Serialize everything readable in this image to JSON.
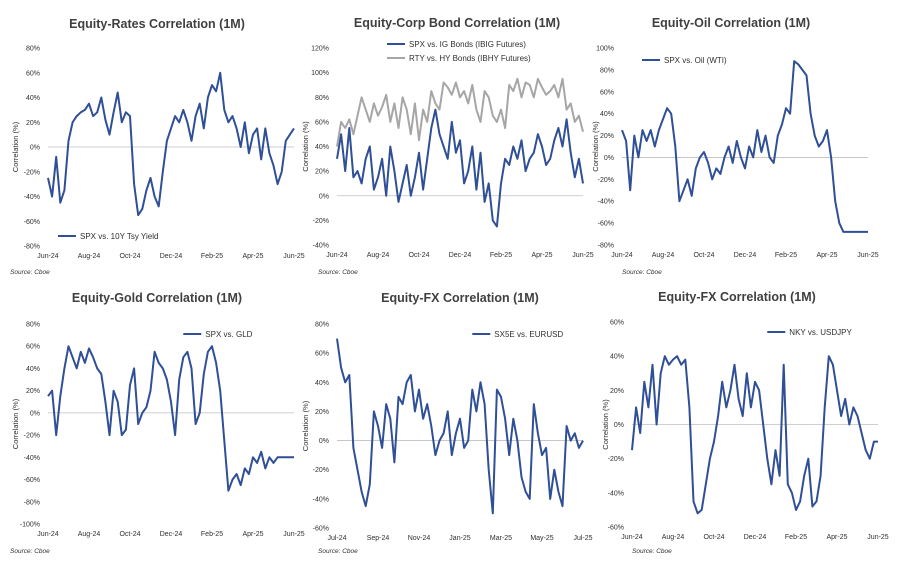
{
  "page": {
    "source_note": "Source: Cboe"
  },
  "colors": {
    "primary": "#2f4f96",
    "secondary": "#a6a6a6",
    "zero_line": "#bfbfbf"
  },
  "chart_data": [
    {
      "id": "equity-rates",
      "type": "line",
      "title": "Equity-Rates Correlation (1M)",
      "ylabel": "Correlation (%)",
      "ylim": [
        -80,
        80
      ],
      "yticks": [
        -80,
        -60,
        -40,
        -20,
        0,
        20,
        40,
        60,
        80
      ],
      "xticks": [
        "Jun-24",
        "Aug-24",
        "Oct-24",
        "Dec-24",
        "Feb-25",
        "Apr-25",
        "Jun-25"
      ],
      "x_range": [
        0,
        12
      ],
      "legend_position": "bottom-left",
      "series": [
        {
          "name": "SPX vs. 10Y Tsy Yield",
          "x": [
            0,
            0.2,
            0.4,
            0.6,
            0.8,
            1.0,
            1.2,
            1.4,
            1.6,
            1.8,
            2.0,
            2.2,
            2.4,
            2.6,
            2.8,
            3.0,
            3.2,
            3.4,
            3.6,
            3.8,
            4.0,
            4.2,
            4.4,
            4.6,
            4.8,
            5.0,
            5.2,
            5.4,
            5.6,
            5.8,
            6.0,
            6.2,
            6.4,
            6.6,
            6.8,
            7.0,
            7.2,
            7.4,
            7.6,
            7.8,
            8.0,
            8.2,
            8.4,
            8.6,
            8.8,
            9.0,
            9.2,
            9.4,
            9.6,
            9.8,
            10.0,
            10.2,
            10.4,
            10.6,
            10.8,
            11.0,
            11.2,
            11.4,
            11.6,
            11.8,
            12.0
          ],
          "values": [
            -25,
            -40,
            -8,
            -45,
            -35,
            5,
            20,
            25,
            28,
            30,
            35,
            25,
            28,
            40,
            22,
            10,
            28,
            44,
            20,
            28,
            25,
            -30,
            -55,
            -50,
            -35,
            -25,
            -40,
            -48,
            -20,
            5,
            15,
            25,
            20,
            30,
            20,
            5,
            25,
            35,
            15,
            40,
            50,
            45,
            60,
            30,
            20,
            25,
            15,
            0,
            20,
            -5,
            10,
            15,
            -10,
            15,
            -5,
            -15,
            -30,
            -20,
            5,
            10,
            15
          ]
        }
      ]
    },
    {
      "id": "equity-corp-bond",
      "type": "line",
      "title": "Equity-Corp Bond Correlation (1M)",
      "ylabel": "Correlation (%)",
      "ylim": [
        -40,
        120
      ],
      "yticks": [
        -40,
        -20,
        0,
        20,
        40,
        60,
        80,
        100,
        120
      ],
      "xticks": [
        "Jun-24",
        "Aug-24",
        "Oct-24",
        "Dec-24",
        "Feb-25",
        "Apr-25",
        "Jun-25"
      ],
      "x_range": [
        0,
        12
      ],
      "legend_position": "top-center",
      "series": [
        {
          "name": "SPX vs. IG Bonds (IBIG Futures)",
          "x": [
            0,
            0.2,
            0.4,
            0.6,
            0.8,
            1.0,
            1.2,
            1.4,
            1.6,
            1.8,
            2.0,
            2.2,
            2.4,
            2.6,
            2.8,
            3.0,
            3.2,
            3.4,
            3.6,
            3.8,
            4.0,
            4.2,
            4.4,
            4.6,
            4.8,
            5.0,
            5.2,
            5.4,
            5.6,
            5.8,
            6.0,
            6.2,
            6.4,
            6.6,
            6.8,
            7.0,
            7.2,
            7.4,
            7.6,
            7.8,
            8.0,
            8.2,
            8.4,
            8.6,
            8.8,
            9.0,
            9.2,
            9.4,
            9.6,
            9.8,
            10.0,
            10.2,
            10.4,
            10.6,
            10.8,
            11.0,
            11.2,
            11.4,
            11.6,
            11.8,
            12.0
          ],
          "values": [
            30,
            50,
            20,
            55,
            15,
            20,
            10,
            30,
            40,
            5,
            15,
            30,
            0,
            40,
            20,
            -5,
            10,
            25,
            0,
            15,
            35,
            5,
            30,
            55,
            70,
            50,
            40,
            30,
            60,
            35,
            45,
            10,
            20,
            40,
            5,
            35,
            -5,
            10,
            -20,
            -25,
            10,
            30,
            25,
            40,
            30,
            45,
            20,
            30,
            35,
            50,
            40,
            25,
            30,
            45,
            55,
            40,
            62,
            35,
            15,
            30,
            10
          ]
        },
        {
          "name": "RTY vs. HY Bonds (IBHY Futures)",
          "x": [
            0,
            0.2,
            0.4,
            0.6,
            0.8,
            1.0,
            1.2,
            1.4,
            1.6,
            1.8,
            2.0,
            2.2,
            2.4,
            2.6,
            2.8,
            3.0,
            3.2,
            3.4,
            3.6,
            3.8,
            4.0,
            4.2,
            4.4,
            4.6,
            4.8,
            5.0,
            5.2,
            5.4,
            5.6,
            5.8,
            6.0,
            6.2,
            6.4,
            6.6,
            6.8,
            7.0,
            7.2,
            7.4,
            7.6,
            7.8,
            8.0,
            8.2,
            8.4,
            8.6,
            8.8,
            9.0,
            9.2,
            9.4,
            9.6,
            9.8,
            10.0,
            10.2,
            10.4,
            10.6,
            10.8,
            11.0,
            11.2,
            11.4,
            11.6,
            11.8,
            12.0
          ],
          "values": [
            40,
            60,
            55,
            62,
            50,
            65,
            80,
            70,
            60,
            75,
            65,
            72,
            82,
            60,
            75,
            55,
            80,
            70,
            50,
            75,
            45,
            70,
            60,
            85,
            75,
            70,
            92,
            88,
            82,
            92,
            80,
            85,
            75,
            90,
            70,
            60,
            85,
            80,
            65,
            60,
            70,
            55,
            90,
            85,
            95,
            80,
            92,
            90,
            80,
            95,
            88,
            82,
            85,
            90,
            80,
            95,
            70,
            75,
            60,
            65,
            52
          ]
        }
      ]
    },
    {
      "id": "equity-oil",
      "type": "line",
      "title": "Equity-Oil Correlation (1M)",
      "ylabel": "Correlation (%)",
      "ylim": [
        -80,
        100
      ],
      "yticks": [
        -80,
        -60,
        -40,
        -20,
        0,
        20,
        40,
        60,
        80,
        100
      ],
      "xticks": [
        "Jun-24",
        "Aug-24",
        "Oct-24",
        "Dec-24",
        "Feb-25",
        "Apr-25",
        "Jun-25"
      ],
      "x_range": [
        0,
        12
      ],
      "legend_position": "top-left",
      "series": [
        {
          "name": "SPX vs. Oil (WTI)",
          "x": [
            0,
            0.2,
            0.4,
            0.6,
            0.8,
            1.0,
            1.2,
            1.4,
            1.6,
            1.8,
            2.0,
            2.2,
            2.4,
            2.6,
            2.8,
            3.0,
            3.2,
            3.4,
            3.6,
            3.8,
            4.0,
            4.2,
            4.4,
            4.6,
            4.8,
            5.0,
            5.2,
            5.4,
            5.6,
            5.8,
            6.0,
            6.2,
            6.4,
            6.6,
            6.8,
            7.0,
            7.2,
            7.4,
            7.6,
            7.8,
            8.0,
            8.2,
            8.4,
            8.6,
            8.8,
            9.0,
            9.2,
            9.4,
            9.6,
            9.8,
            10.0,
            10.2,
            10.4,
            10.6,
            10.8,
            11.0,
            11.2,
            11.4,
            11.6,
            11.8,
            12.0
          ],
          "values": [
            25,
            15,
            -30,
            20,
            0,
            25,
            15,
            25,
            10,
            25,
            35,
            45,
            40,
            10,
            -40,
            -30,
            -20,
            -35,
            -10,
            0,
            5,
            -5,
            -20,
            -10,
            -15,
            0,
            10,
            -5,
            15,
            0,
            -10,
            10,
            0,
            25,
            5,
            20,
            0,
            -5,
            20,
            30,
            45,
            40,
            88,
            85,
            80,
            75,
            40,
            20,
            10,
            15,
            25,
            0,
            -40,
            -60,
            -68,
            -68,
            -68,
            -68,
            -68,
            -68,
            -68
          ]
        }
      ]
    },
    {
      "id": "equity-gold",
      "type": "line",
      "title": "Equity-Gold Correlation (1M)",
      "ylabel": "Correlation (%)",
      "ylim": [
        -100,
        80
      ],
      "yticks": [
        -100,
        -80,
        -60,
        -40,
        -20,
        0,
        20,
        40,
        60,
        80
      ],
      "xticks": [
        "Jun-24",
        "Aug-24",
        "Oct-24",
        "Dec-24",
        "Feb-25",
        "Apr-25",
        "Jun-25"
      ],
      "x_range": [
        0,
        12
      ],
      "legend_position": "top-right",
      "series": [
        {
          "name": "SPX vs. GLD",
          "x": [
            0,
            0.2,
            0.4,
            0.6,
            0.8,
            1.0,
            1.2,
            1.4,
            1.6,
            1.8,
            2.0,
            2.2,
            2.4,
            2.6,
            2.8,
            3.0,
            3.2,
            3.4,
            3.6,
            3.8,
            4.0,
            4.2,
            4.4,
            4.6,
            4.8,
            5.0,
            5.2,
            5.4,
            5.6,
            5.8,
            6.0,
            6.2,
            6.4,
            6.6,
            6.8,
            7.0,
            7.2,
            7.4,
            7.6,
            7.8,
            8.0,
            8.2,
            8.4,
            8.6,
            8.8,
            9.0,
            9.2,
            9.4,
            9.6,
            9.8,
            10.0,
            10.2,
            10.4,
            10.6,
            10.8,
            11.0,
            11.2,
            11.4,
            11.6,
            11.8,
            12.0
          ],
          "values": [
            15,
            20,
            -20,
            15,
            40,
            60,
            50,
            40,
            55,
            45,
            58,
            50,
            40,
            35,
            10,
            -20,
            20,
            10,
            -20,
            -15,
            25,
            40,
            -10,
            0,
            5,
            20,
            55,
            45,
            40,
            30,
            10,
            -20,
            30,
            50,
            55,
            40,
            -10,
            0,
            35,
            55,
            60,
            45,
            20,
            -25,
            -70,
            -60,
            -55,
            -65,
            -50,
            -55,
            -40,
            -45,
            -35,
            -50,
            -40,
            -45,
            -40,
            -40,
            -40,
            -40,
            -40
          ]
        }
      ]
    },
    {
      "id": "equity-fx-eur",
      "type": "line",
      "title": "Equity-FX Correlation (1M)",
      "ylabel": "Correlation (%)",
      "ylim": [
        -60,
        80
      ],
      "yticks": [
        -60,
        -40,
        -20,
        0,
        20,
        40,
        60,
        80
      ],
      "xticks": [
        "Jul-24",
        "Sep-24",
        "Nov-24",
        "Jan-25",
        "Mar-25",
        "May-25",
        "Jul-25"
      ],
      "x_range": [
        0,
        12
      ],
      "legend_position": "top-right",
      "series": [
        {
          "name": "SX5E vs. EURUSD",
          "x": [
            0,
            0.2,
            0.4,
            0.6,
            0.8,
            1.0,
            1.2,
            1.4,
            1.6,
            1.8,
            2.0,
            2.2,
            2.4,
            2.6,
            2.8,
            3.0,
            3.2,
            3.4,
            3.6,
            3.8,
            4.0,
            4.2,
            4.4,
            4.6,
            4.8,
            5.0,
            5.2,
            5.4,
            5.6,
            5.8,
            6.0,
            6.2,
            6.4,
            6.6,
            6.8,
            7.0,
            7.2,
            7.4,
            7.6,
            7.8,
            8.0,
            8.2,
            8.4,
            8.6,
            8.8,
            9.0,
            9.2,
            9.4,
            9.6,
            9.8,
            10.0,
            10.2,
            10.4,
            10.6,
            10.8,
            11.0,
            11.2,
            11.4,
            11.6,
            11.8,
            12.0
          ],
          "values": [
            70,
            50,
            40,
            45,
            -5,
            -20,
            -35,
            -45,
            -30,
            20,
            10,
            -5,
            25,
            15,
            -15,
            30,
            25,
            40,
            45,
            20,
            35,
            15,
            25,
            10,
            -10,
            0,
            5,
            20,
            -10,
            5,
            15,
            -5,
            0,
            35,
            20,
            40,
            25,
            -20,
            -50,
            35,
            30,
            15,
            -10,
            15,
            0,
            -25,
            -35,
            -40,
            25,
            5,
            -10,
            -5,
            -40,
            -20,
            -35,
            -45,
            10,
            0,
            5,
            -5,
            0
          ]
        }
      ]
    },
    {
      "id": "equity-fx-jpy",
      "type": "line",
      "title": "Equity-FX Correlation (1M)",
      "ylabel": "Correlation (%)",
      "ylim": [
        -60,
        60
      ],
      "yticks": [
        -60,
        -40,
        -20,
        0,
        20,
        40,
        60
      ],
      "xticks": [
        "Jun-24",
        "Aug-24",
        "Oct-24",
        "Dec-24",
        "Feb-25",
        "Apr-25",
        "Jun-25"
      ],
      "x_range": [
        0,
        12
      ],
      "legend_position": "top-right",
      "series": [
        {
          "name": "NKY vs. USDJPY",
          "x": [
            0,
            0.2,
            0.4,
            0.6,
            0.8,
            1.0,
            1.2,
            1.4,
            1.6,
            1.8,
            2.0,
            2.2,
            2.4,
            2.6,
            2.8,
            3.0,
            3.2,
            3.4,
            3.6,
            3.8,
            4.0,
            4.2,
            4.4,
            4.6,
            4.8,
            5.0,
            5.2,
            5.4,
            5.6,
            5.8,
            6.0,
            6.2,
            6.4,
            6.6,
            6.8,
            7.0,
            7.2,
            7.4,
            7.6,
            7.8,
            8.0,
            8.2,
            8.4,
            8.6,
            8.8,
            9.0,
            9.2,
            9.4,
            9.6,
            9.8,
            10.0,
            10.2,
            10.4,
            10.6,
            10.8,
            11.0,
            11.2,
            11.4,
            11.6,
            11.8,
            12.0
          ],
          "values": [
            -15,
            10,
            -5,
            25,
            10,
            35,
            0,
            30,
            40,
            35,
            38,
            40,
            35,
            38,
            10,
            -45,
            -52,
            -50,
            -35,
            -20,
            -10,
            5,
            25,
            10,
            20,
            35,
            15,
            5,
            30,
            10,
            25,
            20,
            0,
            -20,
            -35,
            -15,
            -30,
            35,
            -35,
            -40,
            -50,
            -45,
            -30,
            -20,
            -48,
            -45,
            -30,
            10,
            40,
            35,
            20,
            5,
            15,
            0,
            10,
            5,
            -5,
            -15,
            -20,
            -10,
            -10
          ]
        }
      ]
    }
  ]
}
